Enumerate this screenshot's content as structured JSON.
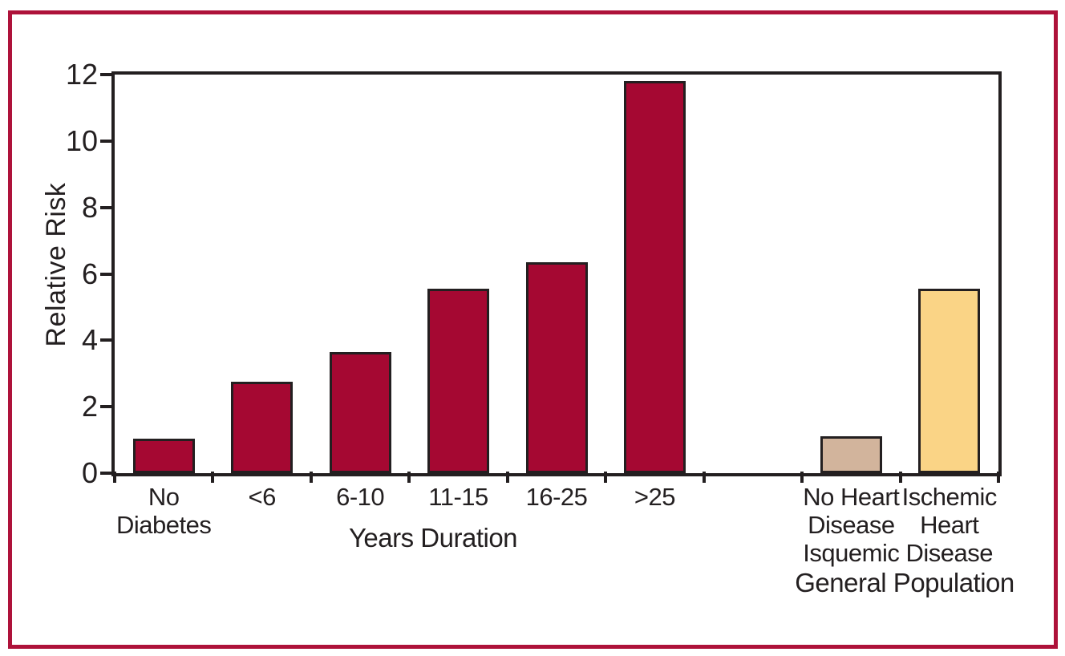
{
  "chart_data": {
    "type": "bar",
    "title": "",
    "xlabel": "",
    "ylabel": "Relative Risk",
    "ylim": [
      0,
      12
    ],
    "yticks": [
      0,
      2,
      4,
      6,
      8,
      10,
      12
    ],
    "grid": false,
    "legend": false,
    "n_slots": 9,
    "x_group_labels": [
      {
        "text": "Years Duration"
      },
      {
        "text": "General Population"
      }
    ],
    "bars": [
      {
        "label": "No Diabetes",
        "label_lines": "No\nDiabetes",
        "value": 1.05,
        "color": "#a50832",
        "slot": 0
      },
      {
        "label": "<6",
        "label_lines": "<6",
        "value": 2.75,
        "color": "#a50832",
        "slot": 1
      },
      {
        "label": "6-10",
        "label_lines": "6-10",
        "value": 3.65,
        "color": "#a50832",
        "slot": 2
      },
      {
        "label": "11-15",
        "label_lines": "11-15",
        "value": 5.55,
        "color": "#a50832",
        "slot": 3
      },
      {
        "label": "16-25",
        "label_lines": "16-25",
        "value": 6.35,
        "color": "#a50832",
        "slot": 4
      },
      {
        "label": ">25",
        "label_lines": ">25",
        "value": 11.8,
        "color": "#a50832",
        "slot": 5
      },
      {
        "label": "No Heart Disease Isquemic",
        "label_lines": "No Heart\nDisease\nIsquemic",
        "value": 1.1,
        "color": "#d2b49c",
        "slot": 7
      },
      {
        "label": "Ischemic Heart Disease",
        "label_lines": "Ischemic\nHeart\nDisease",
        "value": 5.55,
        "color": "#fad486",
        "slot": 8
      }
    ],
    "bar_outline_color": "#231f20",
    "axis_color": "#231f20"
  },
  "figure": {
    "border_color": "#ae123a",
    "background": "#ffffff",
    "text_color": "#231f20"
  }
}
